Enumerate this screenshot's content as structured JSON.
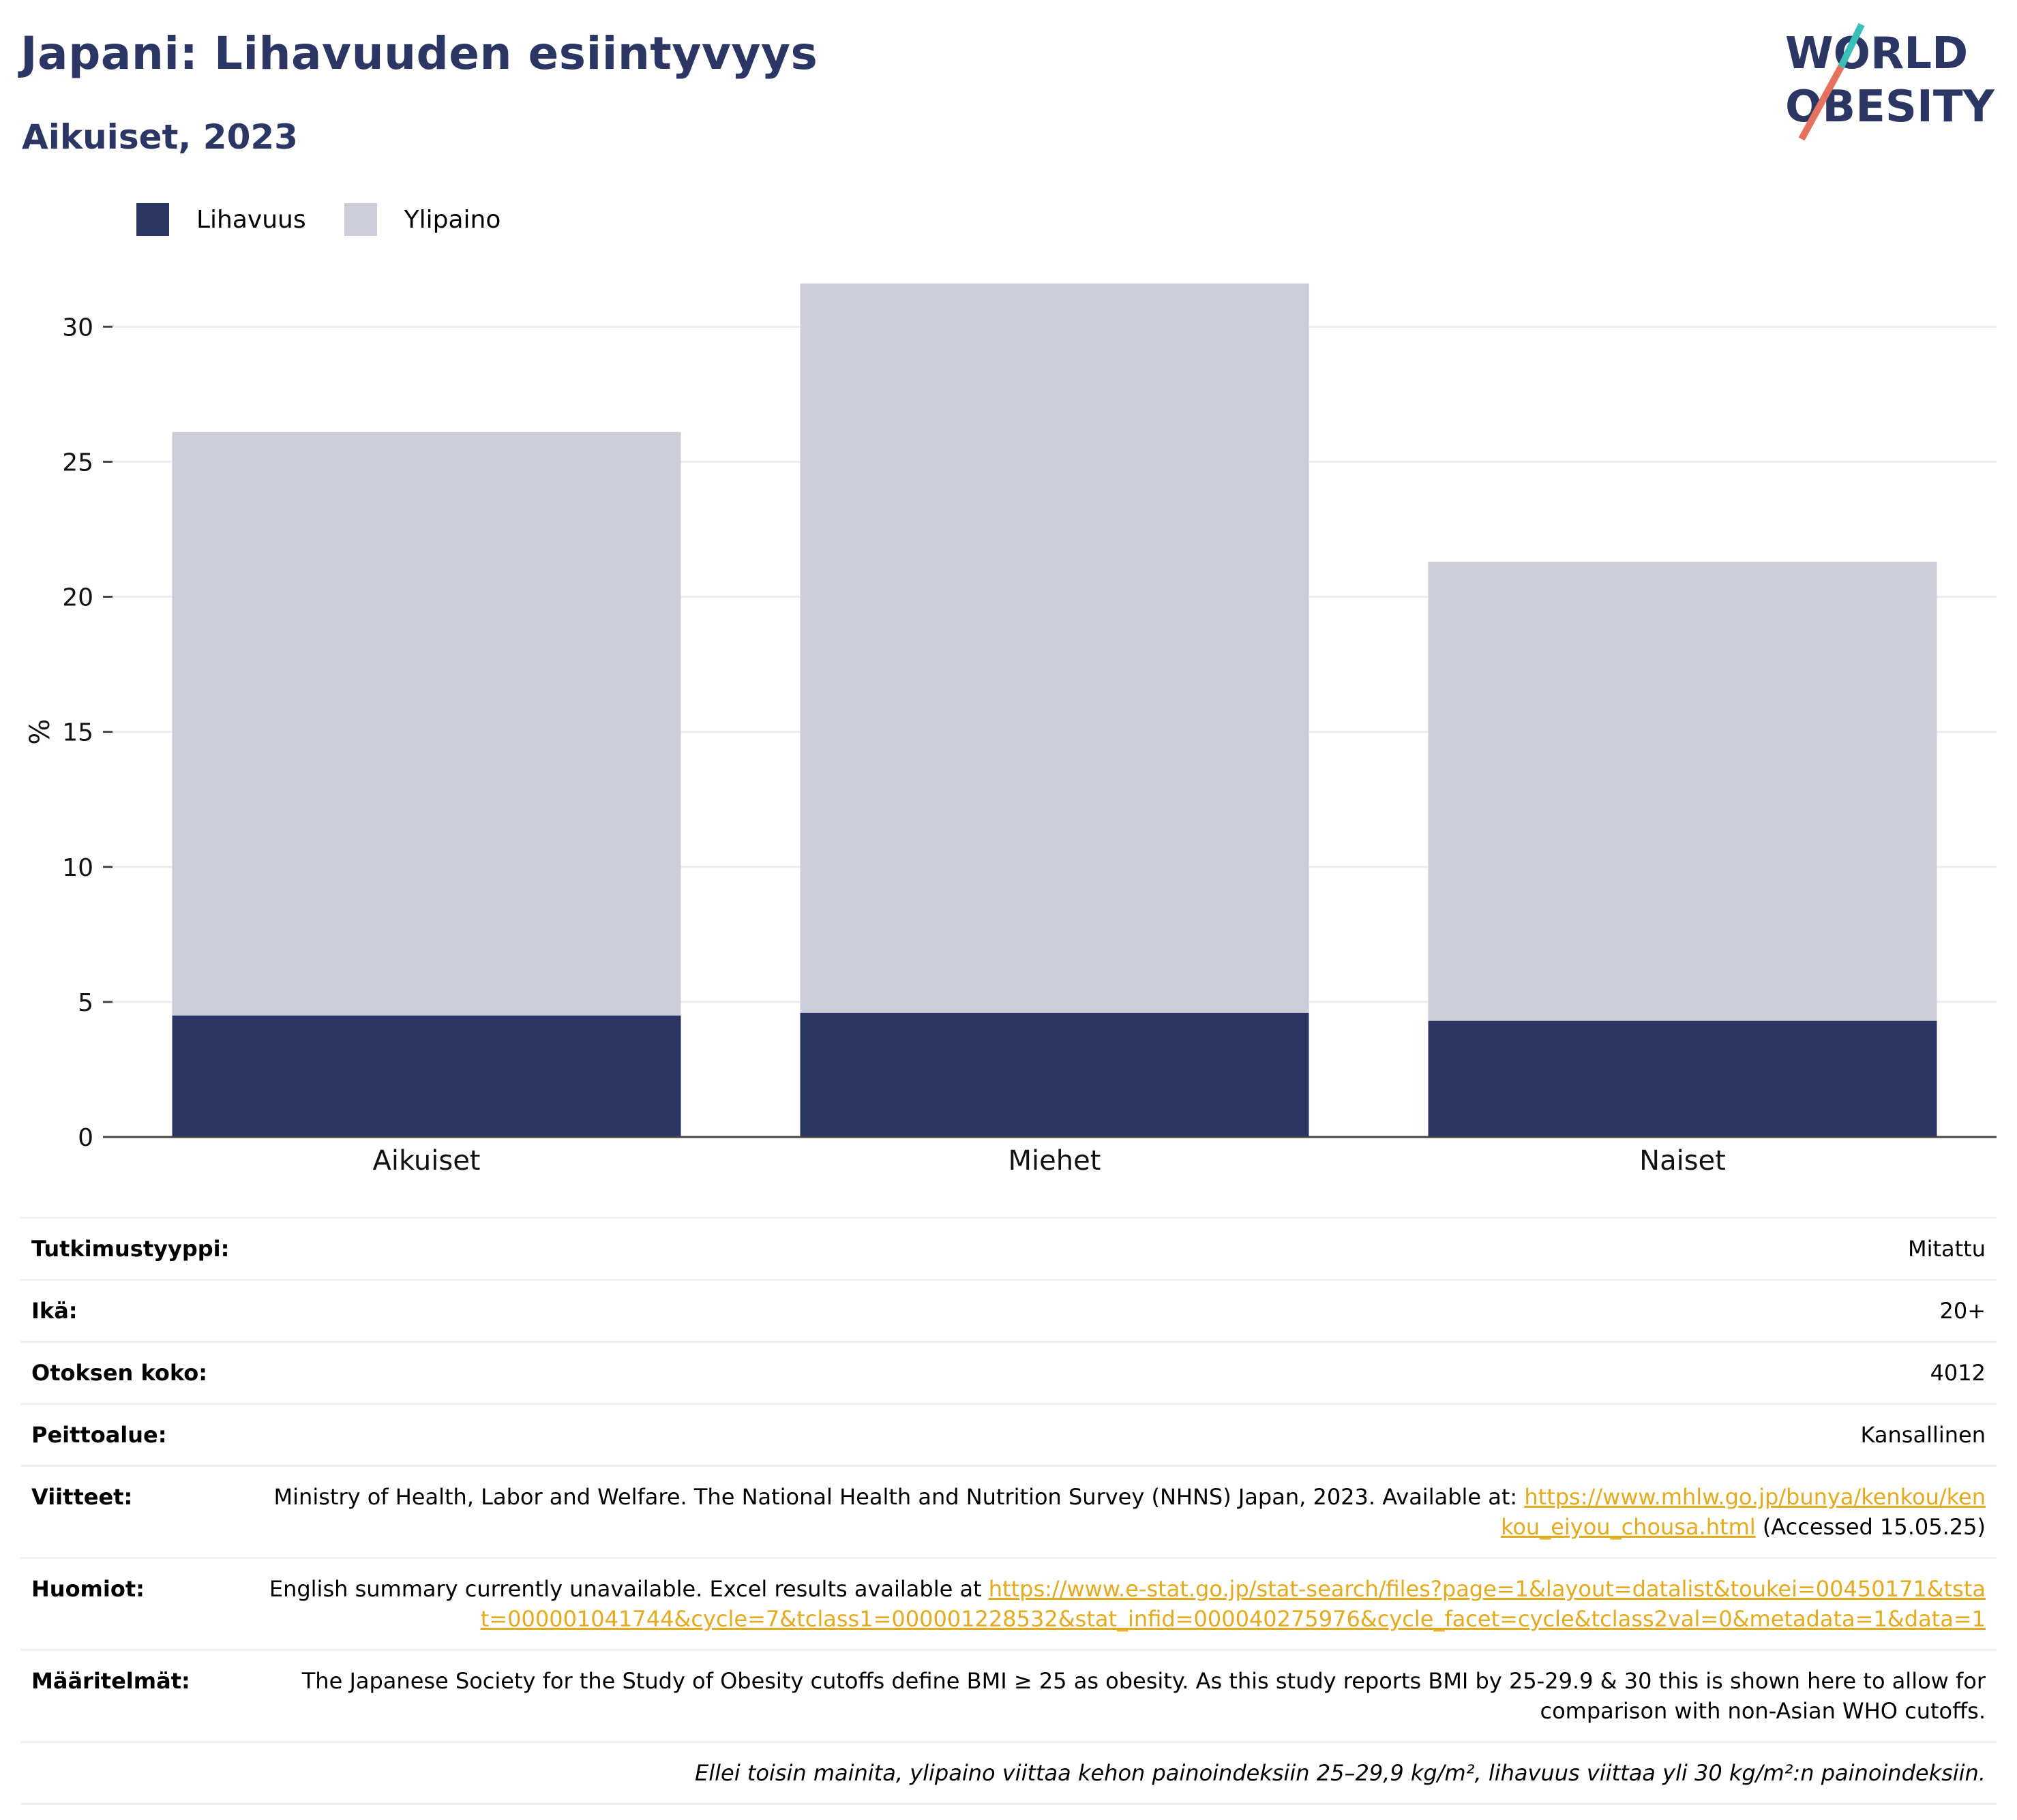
{
  "title": "Japani: Lihavuuden esiintyvyys",
  "subtitle": "Aikuiset, 2023",
  "logo": {
    "line1": "WORLD",
    "line2": "OBESITY"
  },
  "colors": {
    "obesity": "#2b3664",
    "overweight": "#cbcdd8",
    "link": "#e3a91f",
    "accent_teal": "#3bbfb8",
    "accent_coral": "#e5725f"
  },
  "legend": {
    "items": [
      {
        "label": "Lihavuus",
        "color": "#2b3664"
      },
      {
        "label": "Ylipaino",
        "color": "#cbcdd8"
      }
    ]
  },
  "chart_data": {
    "type": "bar",
    "stacked": true,
    "categories": [
      "Aikuiset",
      "Miehet",
      "Naiset"
    ],
    "series": [
      {
        "name": "Lihavuus",
        "values": [
          4.5,
          4.6,
          4.3
        ]
      },
      {
        "name": "Ylipaino",
        "values": [
          21.6,
          27.0,
          17.0
        ]
      }
    ],
    "ylabel": "%",
    "ylim": [
      0,
      32
    ],
    "yticks": [
      0,
      5,
      10,
      15,
      20,
      25,
      30
    ],
    "grid": true,
    "legend_position": "top-left"
  },
  "meta": {
    "study_type": {
      "label": "Tutkimustyyppi:",
      "value": "Mitattu"
    },
    "age": {
      "label": "Ikä:",
      "value": "20+"
    },
    "sample_size": {
      "label": "Otoksen koko:",
      "value": "4012"
    },
    "coverage": {
      "label": "Peittoalue:",
      "value": "Kansallinen"
    },
    "references": {
      "label": "Viitteet:",
      "text": "Ministry of Health, Labor and Welfare. The National Health and Nutrition Survey (NHNS) Japan, 2023. Available at: ",
      "link": "https://www.mhlw.go.jp/bunya/kenkou/kenkou_eiyou_chousa.html",
      "after": " (Accessed 15.05.25)"
    },
    "notes": {
      "label": "Huomiot:",
      "text": "English summary currently unavailable. Excel results available at ",
      "link": "https://www.e-stat.go.jp/stat-search/files?page=1&layout=datalist&toukei=00450171&tstat=000001041744&cycle=7&tclass1=000001228532&stat_infid=000040275976&cycle_facet=cycle&tclass2val=0&metadata=1&data=1"
    },
    "definitions": {
      "label": "Määritelmät:",
      "value": "The Japanese Society for the Study of Obesity cutoffs define BMI ≥ 25 as obesity. As this study reports BMI by 25-29.9 & 30 this is shown here to allow for comparison with non-Asian WHO cutoffs."
    },
    "footnote": "Ellei toisin mainita, ylipaino viittaa kehon painoindeksiin 25–29,9 kg/m², lihavuus viittaa yli 30 kg/m²:n painoindeksiin."
  }
}
